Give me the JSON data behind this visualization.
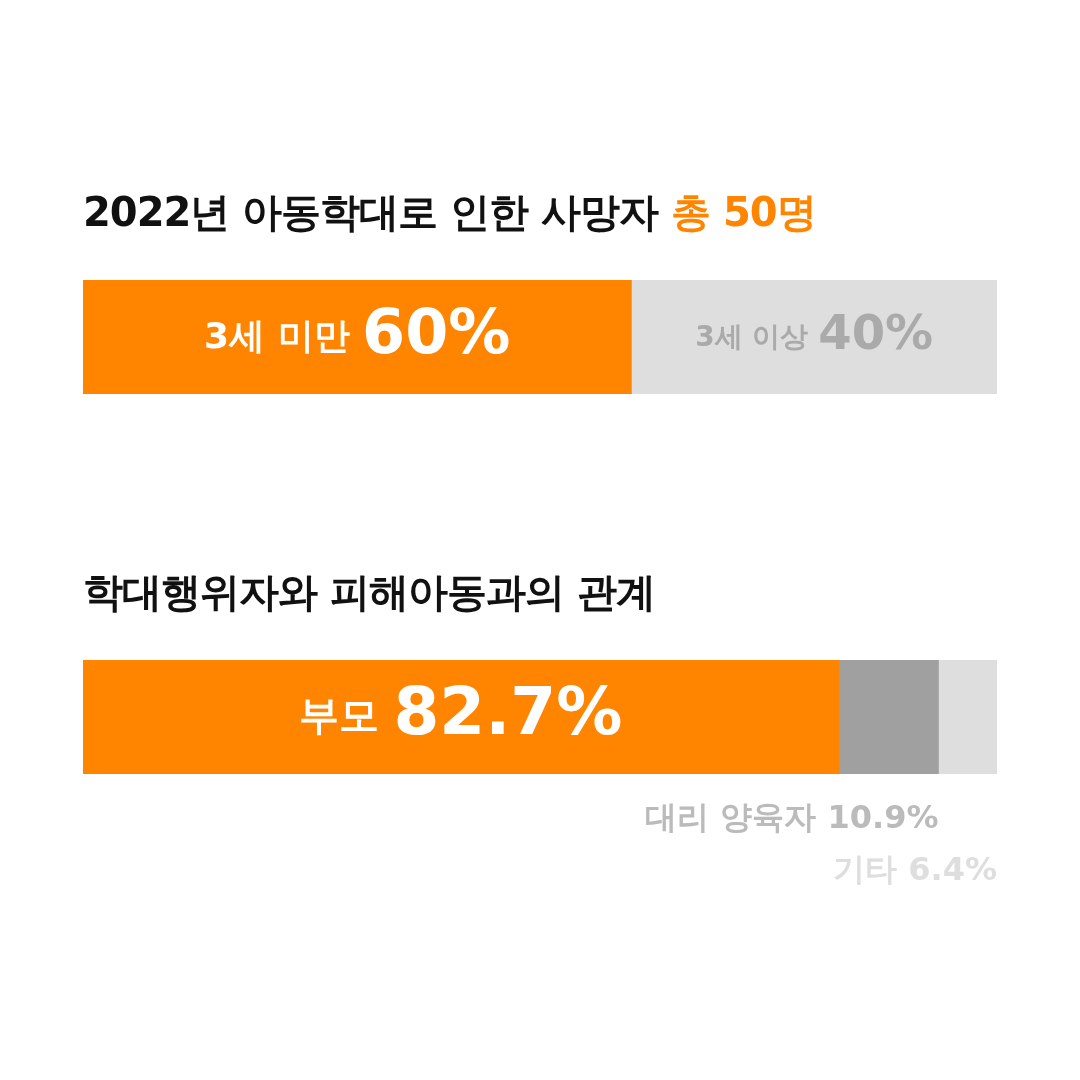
{
  "chart_data": [
    {
      "type": "bar",
      "orientation": "horizontal",
      "stacked": true,
      "title": "2022년 아동학대로 인한 사망자",
      "subtitle": "총 50명",
      "categories": [
        null
      ],
      "xlim": [
        0,
        100
      ],
      "tick_labels": false,
      "series": [
        {
          "name": "3세 미만",
          "color": "#ff8400",
          "values": [
            60
          ],
          "value_labels": [
            "60%"
          ]
        },
        {
          "name": "3세 이상",
          "color": "#dedede",
          "values": [
            40
          ],
          "value_labels": [
            "40%"
          ]
        }
      ]
    },
    {
      "type": "bar",
      "orientation": "horizontal",
      "stacked": true,
      "title": "학대행위자와 피해아동과의 관계",
      "categories": [
        null
      ],
      "xlim": [
        0,
        100
      ],
      "tick_labels": false,
      "series": [
        {
          "name": "부모",
          "color": "#ff8400",
          "values": [
            82.7
          ],
          "value_labels": [
            "82.7%"
          ]
        },
        {
          "name": "대리 양육자",
          "color": "#a0a0a0",
          "values": [
            10.9
          ],
          "value_labels": [
            "10.9%"
          ]
        },
        {
          "name": "기타",
          "color": "#dedede",
          "values": [
            6.4
          ],
          "value_labels": [
            "6.4%"
          ]
        }
      ]
    }
  ]
}
